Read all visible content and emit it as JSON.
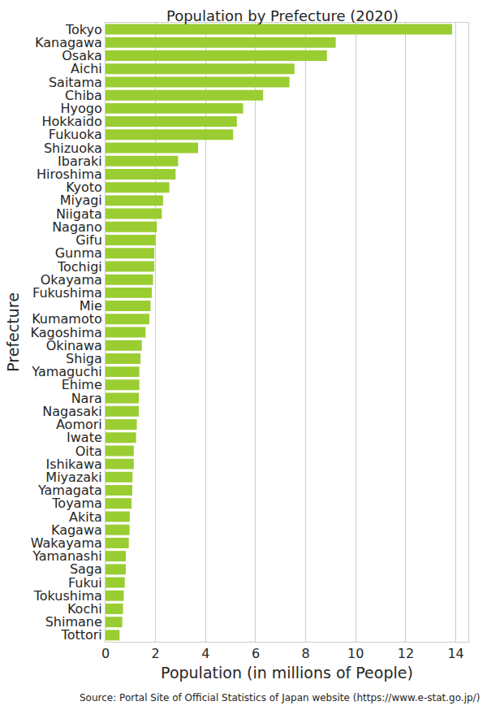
{
  "chart_data": {
    "type": "bar",
    "orientation": "horizontal",
    "title": "Population by Prefecture (2020)",
    "x_label": "Population (in millions of People)",
    "y_label": "Prefecture",
    "annotations": [
      "Source: Portal Site of Official Statistics of Japan website (https://www.e-stat.go.jp/)"
    ],
    "categories": [
      "Tokyo",
      "Kanagawa",
      "Osaka",
      "Aichi",
      "Saitama",
      "Chiba",
      "Hyogo",
      "Hokkaido",
      "Fukuoka",
      "Shizuoka",
      "Ibaraki",
      "Hiroshima",
      "Kyoto",
      "Miyagi",
      "Niigata",
      "Nagano",
      "Gifu",
      "Gunma",
      "Tochigi",
      "Okayama",
      "Fukushima",
      "Mie",
      "Kumamoto",
      "Kagoshima",
      "Okinawa",
      "Shiga",
      "Yamaguchi",
      "Ehime",
      "Nara",
      "Nagasaki",
      "Aomori",
      "Iwate",
      "Oita",
      "Ishikawa",
      "Miyazaki",
      "Yamagata",
      "Toyama",
      "Akita",
      "Kagawa",
      "Wakayama",
      "Yamanashi",
      "Saga",
      "Fukui",
      "Tokushima",
      "Kochi",
      "Shimane",
      "Tottori"
    ],
    "values": [
      13.85,
      9.2,
      8.85,
      7.55,
      7.35,
      6.3,
      5.5,
      5.25,
      5.1,
      3.7,
      2.9,
      2.8,
      2.55,
      2.3,
      2.25,
      2.05,
      2.0,
      1.95,
      1.95,
      1.9,
      1.85,
      1.8,
      1.75,
      1.6,
      1.45,
      1.4,
      1.35,
      1.35,
      1.33,
      1.33,
      1.25,
      1.22,
      1.13,
      1.13,
      1.08,
      1.07,
      1.04,
      0.97,
      0.96,
      0.93,
      0.81,
      0.81,
      0.77,
      0.73,
      0.7,
      0.67,
      0.56
    ],
    "color": "#9acd32",
    "xlim": [
      0,
      14.5
    ],
    "xticks": [
      0,
      2,
      4,
      6,
      8,
      10,
      12,
      14
    ],
    "grid": true
  }
}
